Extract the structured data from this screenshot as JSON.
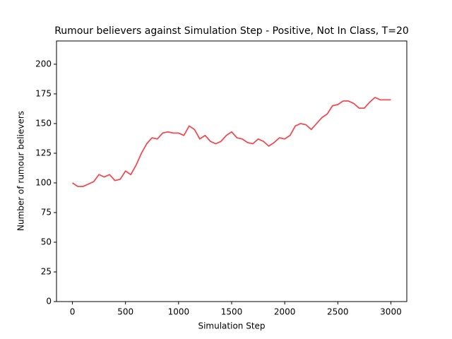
{
  "chart_data": {
    "type": "line",
    "title": "Rumour believers against Simulation Step - Positive, Not In Class, T=20",
    "x_label": "Simulation Step",
    "y_label": "Number of rumour believers",
    "x": [
      0,
      50,
      100,
      150,
      200,
      250,
      300,
      350,
      400,
      450,
      500,
      550,
      600,
      650,
      700,
      750,
      800,
      850,
      900,
      950,
      1000,
      1050,
      1100,
      1150,
      1200,
      1250,
      1300,
      1350,
      1400,
      1450,
      1500,
      1550,
      1600,
      1650,
      1700,
      1750,
      1800,
      1850,
      1900,
      1950,
      2000,
      2050,
      2100,
      2150,
      2200,
      2250,
      2300,
      2350,
      2400,
      2450,
      2500,
      2550,
      2600,
      2650,
      2700,
      2750,
      2800,
      2850,
      2900,
      2950,
      3000
    ],
    "series": [
      {
        "color": "#f24b52",
        "values": [
          100,
          97,
          97,
          99,
          101,
          107,
          105,
          107,
          102,
          103,
          110,
          107,
          115,
          125,
          133,
          138,
          137,
          142,
          143,
          142,
          142,
          140,
          148,
          145,
          137,
          140,
          135,
          133,
          135,
          140,
          143,
          138,
          137,
          134,
          133,
          137,
          135,
          131,
          134,
          138,
          137,
          140,
          148,
          150,
          149,
          145,
          150,
          155,
          158,
          165,
          166,
          169,
          169,
          167,
          163,
          163,
          168,
          172,
          170,
          170,
          170
        ]
      }
    ],
    "xlim": [
      -150,
      3150
    ],
    "xticks": [
      0,
      500,
      1000,
      1500,
      2000,
      2500,
      3000
    ],
    "ylim": [
      0,
      219.6
    ],
    "yticks": [
      0,
      25,
      50,
      75,
      100,
      125,
      150,
      175,
      200
    ]
  }
}
